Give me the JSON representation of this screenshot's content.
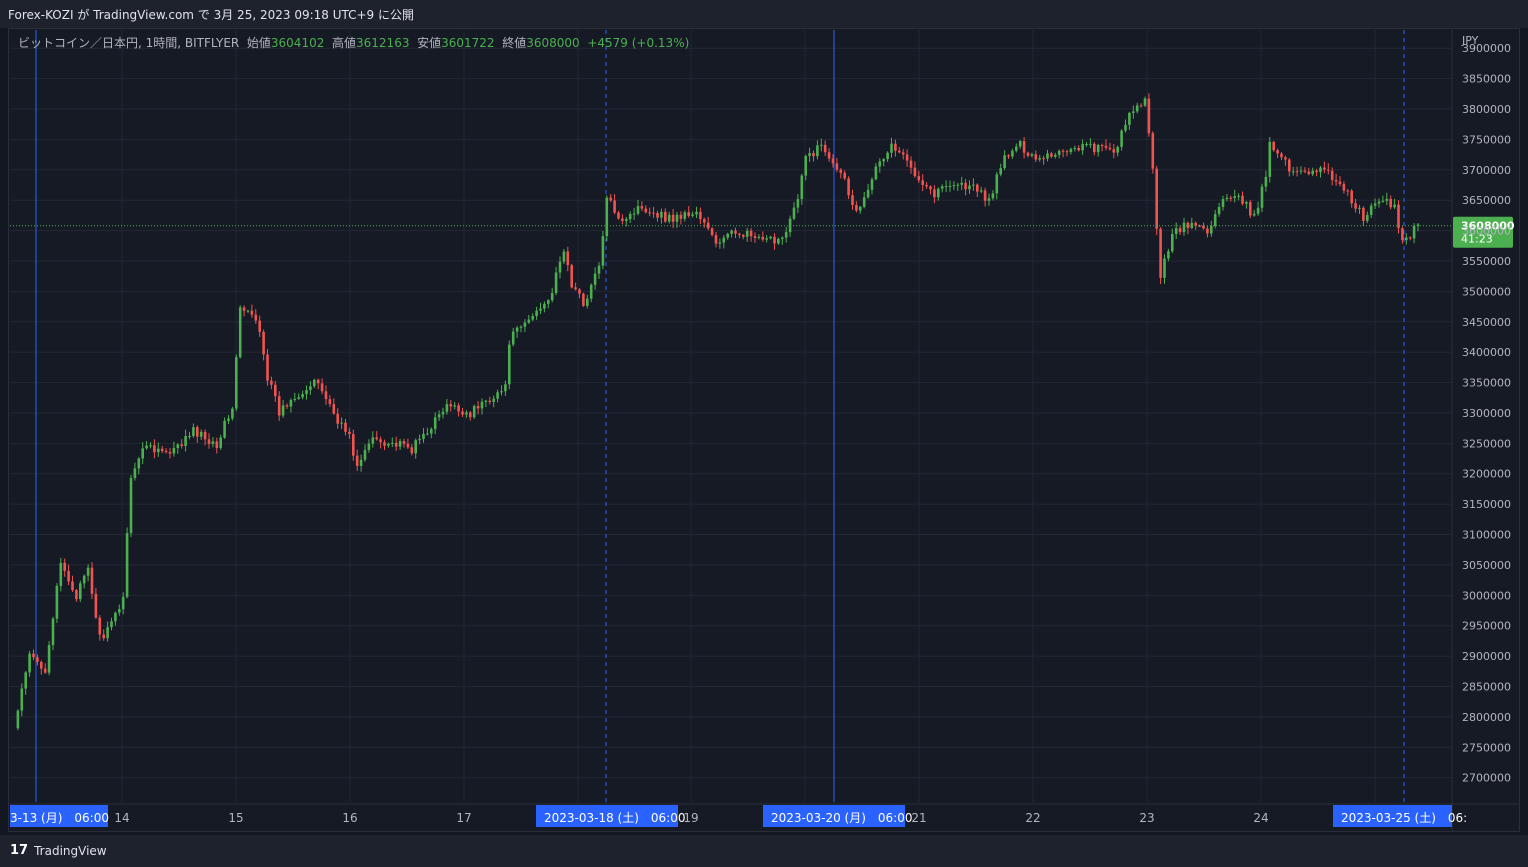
{
  "header": {
    "publish_text": "Forex-KOZI が TradingView.com で 3月 25, 2023 09:18 UTC+9 に公開"
  },
  "footer": {
    "brand_logo": "17",
    "brand_name": "TradingView"
  },
  "legend": {
    "symbol": "ビットコイン／日本円, 1時間, BITFLYER",
    "open_label": "始値",
    "open": "3604102",
    "high_label": "高値",
    "high": "3612163",
    "low_label": "安値",
    "low": "3601722",
    "close_label": "終値",
    "close": "3608000",
    "change": "+4579 (+0.13%)"
  },
  "colors": {
    "up": "#4caf50",
    "down": "#f05350",
    "background": "#131722",
    "grid": "#232734",
    "marker": "#2962ff"
  },
  "chart_data": {
    "type": "candlestick",
    "currency": "JPY",
    "interval": "1h",
    "ylim": [
      2660000,
      3930000
    ],
    "y_ticks": [
      2700000,
      2750000,
      2800000,
      2850000,
      2900000,
      2950000,
      3000000,
      3050000,
      3100000,
      3150000,
      3200000,
      3250000,
      3300000,
      3350000,
      3400000,
      3450000,
      3500000,
      3550000,
      3600000,
      3650000,
      3700000,
      3750000,
      3800000,
      3850000,
      3900000
    ],
    "x_ticks": [
      "14",
      "15",
      "16",
      "17",
      "19",
      "21",
      "22",
      "23",
      "24"
    ],
    "x_highlight_labels": [
      "3-13 (月)　06:00",
      "2023-03-18 (土)　06:00",
      "2023-03-20 (月)　06:00",
      "2023-03-25 (土)　06:"
    ],
    "last_price": "3608000",
    "countdown": "41:23",
    "price_path": [
      [
        0,
        2780000
      ],
      [
        4,
        2900000
      ],
      [
        8,
        2880000
      ],
      [
        12,
        3050000
      ],
      [
        16,
        3000000
      ],
      [
        19,
        3040000
      ],
      [
        22,
        2930000
      ],
      [
        25,
        2950000
      ],
      [
        28,
        3000000
      ],
      [
        30,
        3200000
      ],
      [
        34,
        3250000
      ],
      [
        40,
        3230000
      ],
      [
        46,
        3270000
      ],
      [
        52,
        3250000
      ],
      [
        56,
        3310000
      ],
      [
        58,
        3470000
      ],
      [
        61,
        3460000
      ],
      [
        63,
        3440000
      ],
      [
        65,
        3360000
      ],
      [
        68,
        3300000
      ],
      [
        72,
        3330000
      ],
      [
        78,
        3350000
      ],
      [
        82,
        3300000
      ],
      [
        86,
        3260000
      ],
      [
        88,
        3210000
      ],
      [
        92,
        3260000
      ],
      [
        97,
        3250000
      ],
      [
        102,
        3240000
      ],
      [
        107,
        3280000
      ],
      [
        111,
        3310000
      ],
      [
        117,
        3300000
      ],
      [
        123,
        3330000
      ],
      [
        126,
        3340000
      ],
      [
        127,
        3420000
      ],
      [
        133,
        3460000
      ],
      [
        138,
        3500000
      ],
      [
        141,
        3570000
      ],
      [
        143,
        3510000
      ],
      [
        146,
        3480000
      ],
      [
        150,
        3540000
      ],
      [
        152,
        3650000
      ],
      [
        156,
        3620000
      ],
      [
        161,
        3640000
      ],
      [
        168,
        3620000
      ],
      [
        175,
        3630000
      ],
      [
        180,
        3580000
      ],
      [
        186,
        3600000
      ],
      [
        192,
        3580000
      ],
      [
        197,
        3590000
      ],
      [
        201,
        3650000
      ],
      [
        203,
        3720000
      ],
      [
        207,
        3740000
      ],
      [
        212,
        3700000
      ],
      [
        216,
        3630000
      ],
      [
        220,
        3690000
      ],
      [
        225,
        3740000
      ],
      [
        228,
        3720000
      ],
      [
        232,
        3690000
      ],
      [
        236,
        3660000
      ],
      [
        240,
        3680000
      ],
      [
        246,
        3670000
      ],
      [
        250,
        3650000
      ],
      [
        254,
        3720000
      ],
      [
        258,
        3740000
      ],
      [
        262,
        3720000
      ],
      [
        268,
        3730000
      ],
      [
        274,
        3740000
      ],
      [
        282,
        3730000
      ],
      [
        287,
        3800000
      ],
      [
        290,
        3810000
      ],
      [
        292,
        3700000
      ],
      [
        294,
        3520000
      ],
      [
        297,
        3600000
      ],
      [
        302,
        3610000
      ],
      [
        306,
        3600000
      ],
      [
        310,
        3650000
      ],
      [
        315,
        3650000
      ],
      [
        318,
        3620000
      ],
      [
        321,
        3690000
      ],
      [
        322,
        3750000
      ],
      [
        327,
        3700000
      ],
      [
        335,
        3700000
      ],
      [
        340,
        3680000
      ],
      [
        346,
        3620000
      ],
      [
        350,
        3650000
      ],
      [
        354,
        3640000
      ],
      [
        356,
        3580000
      ],
      [
        360,
        3610000
      ]
    ]
  }
}
